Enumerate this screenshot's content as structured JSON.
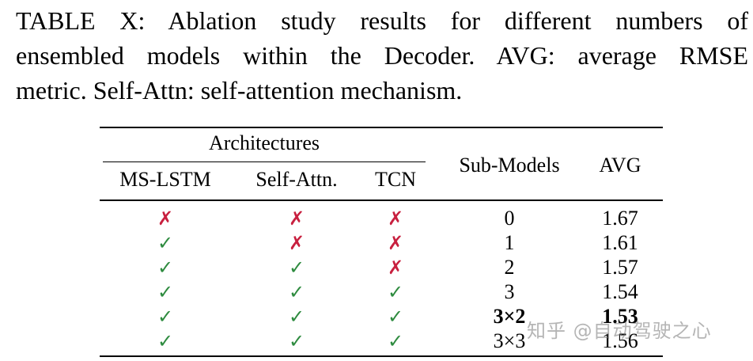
{
  "caption": {
    "line1": "TABLE X: Ablation study results for different numbers of",
    "line2": "ensembled models within the Decoder. AVG: average RMSE",
    "line3": "metric. Self-Attn: self-attention mechanism."
  },
  "table": {
    "group_header": "Architectures",
    "columns": {
      "ms_lstm": "MS-LSTM",
      "self_attn": "Self-Attn.",
      "tcn": "TCN",
      "sub_models": "Sub-Models",
      "avg": "AVG"
    },
    "symbols": {
      "yes": "✓",
      "no": "✗"
    },
    "colors": {
      "yes": "#2e8b3f",
      "no": "#c8203f"
    },
    "rows": [
      {
        "ms_lstm": "✗",
        "self_attn": "✗",
        "tcn": "✗",
        "sub_models": "0",
        "avg": "1.67"
      },
      {
        "ms_lstm": "✓",
        "self_attn": "✗",
        "tcn": "✗",
        "sub_models": "1",
        "avg": "1.61"
      },
      {
        "ms_lstm": "✓",
        "self_attn": "✓",
        "tcn": "✗",
        "sub_models": "2",
        "avg": "1.57"
      },
      {
        "ms_lstm": "✓",
        "self_attn": "✓",
        "tcn": "✓",
        "sub_models": "3",
        "avg": "1.54"
      },
      {
        "ms_lstm": "✓",
        "self_attn": "✓",
        "tcn": "✓",
        "sub_models": "3×2",
        "avg": "1.53"
      },
      {
        "ms_lstm": "✓",
        "self_attn": "✓",
        "tcn": "✓",
        "sub_models": "3×3",
        "avg": "1.56"
      }
    ]
  },
  "watermark": "知乎 @自动驾驶之心"
}
